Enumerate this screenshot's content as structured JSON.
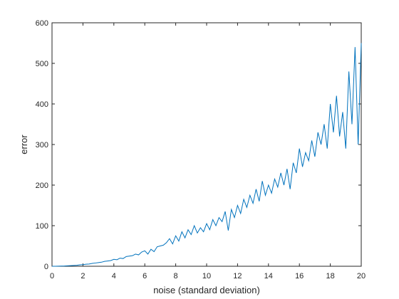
{
  "chart_data": {
    "type": "line",
    "xlabel": "noise (standard deviation)",
    "ylabel": "error",
    "x": [
      0,
      0.2,
      0.4,
      0.6,
      0.8,
      1,
      1.2,
      1.4,
      1.6,
      1.8,
      2,
      2.2,
      2.4,
      2.6,
      2.8,
      3,
      3.2,
      3.4,
      3.6,
      3.8,
      4,
      4.2,
      4.4,
      4.6,
      4.8,
      5,
      5.2,
      5.4,
      5.6,
      5.8,
      6,
      6.2,
      6.4,
      6.6,
      6.8,
      7,
      7.2,
      7.4,
      7.6,
      7.8,
      8,
      8.2,
      8.4,
      8.6,
      8.8,
      9,
      9.2,
      9.4,
      9.6,
      9.8,
      10,
      10.2,
      10.4,
      10.6,
      10.8,
      11,
      11.2,
      11.4,
      11.6,
      11.8,
      12,
      12.2,
      12.4,
      12.6,
      12.8,
      13,
      13.2,
      13.4,
      13.6,
      13.8,
      14,
      14.2,
      14.4,
      14.6,
      14.8,
      15,
      15.2,
      15.4,
      15.6,
      15.8,
      16,
      16.2,
      16.4,
      16.6,
      16.8,
      17,
      17.2,
      17.4,
      17.6,
      17.8,
      18,
      18.2,
      18.4,
      18.6,
      18.8,
      19,
      19.2,
      19.4,
      19.6,
      19.8,
      20
    ],
    "series": [
      {
        "color": "#0072bd",
        "values": [
          0,
          0.1,
          0.2,
          0.4,
          0.6,
          1,
          1.5,
          2,
          2.5,
          3.5,
          4,
          5,
          5.5,
          7,
          8,
          9,
          10,
          12,
          13,
          14,
          17,
          16,
          20,
          19,
          24,
          25,
          26,
          30,
          28,
          35,
          38,
          30,
          42,
          36,
          48,
          50,
          52,
          58,
          68,
          55,
          75,
          62,
          85,
          70,
          90,
          78,
          100,
          82,
          95,
          85,
          105,
          90,
          115,
          100,
          120,
          110,
          135,
          88,
          140,
          120,
          150,
          130,
          165,
          145,
          175,
          155,
          190,
          160,
          210,
          175,
          200,
          180,
          215,
          195,
          230,
          200,
          240,
          190,
          255,
          230,
          290,
          245,
          280,
          260,
          310,
          270,
          330,
          300,
          350,
          290,
          400,
          330,
          420,
          320,
          380,
          290,
          480,
          350,
          540,
          300,
          550
        ]
      }
    ],
    "xlim": [
      0,
      20
    ],
    "xticks": [
      0,
      2,
      4,
      6,
      8,
      10,
      12,
      14,
      16,
      18,
      20
    ],
    "ylim": [
      0,
      600
    ],
    "yticks": [
      0,
      100,
      200,
      300,
      400,
      500,
      600
    ]
  }
}
